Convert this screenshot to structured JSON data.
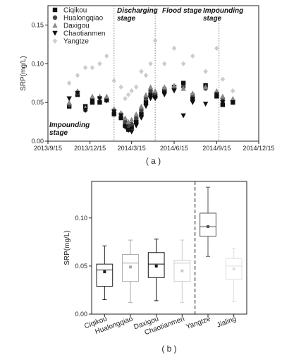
{
  "chart_data": [
    {
      "type": "scatter",
      "caption": "( a )",
      "ylabel": "SRP(mg/L)",
      "x": [
        "2013/10/31",
        "2013/11/18",
        "2013/12/5",
        "2013/12/20",
        "2014/1/5",
        "2014/1/20",
        "2014/2/5",
        "2014/2/20",
        "2014/3/1",
        "2014/3/8",
        "2014/3/15",
        "2014/3/25",
        "2014/4/5",
        "2014/4/15",
        "2014/4/25",
        "2014/5/5",
        "2014/5/25",
        "2014/6/15",
        "2014/7/5",
        "2014/7/25",
        "2014/8/22",
        "2014/9/15",
        "2014/9/28",
        "2014/10/20"
      ],
      "series": [
        {
          "name": "Ciqikou",
          "color": "#111111",
          "marker": "square",
          "values": [
            0.045,
            0.06,
            0.045,
            0.05,
            0.05,
            0.053,
            0.035,
            0.03,
            0.02,
            0.015,
            0.018,
            0.025,
            0.035,
            0.05,
            0.06,
            0.058,
            0.065,
            0.07,
            0.075,
            0.055,
            0.072,
            0.058,
            0.047,
            0.05
          ]
        },
        {
          "name": "Hualongqiao",
          "color": "#444444",
          "marker": "circle",
          "values": [
            0.047,
            0.062,
            0.04,
            0.055,
            0.056,
            0.055,
            0.04,
            0.035,
            0.025,
            0.02,
            0.022,
            0.03,
            0.04,
            0.055,
            0.065,
            0.062,
            0.068,
            0.068,
            0.07,
            0.06,
            0.068,
            0.062,
            0.055,
            0.052
          ]
        },
        {
          "name": "Daxigou",
          "color": "#888888",
          "marker": "triangle-up",
          "values": [
            0.05,
            0.065,
            0.043,
            0.058,
            0.058,
            0.058,
            0.042,
            0.037,
            0.03,
            0.025,
            0.028,
            0.035,
            0.045,
            0.06,
            0.07,
            0.065,
            0.07,
            0.072,
            0.068,
            0.062,
            0.07,
            0.065,
            0.058,
            0.055
          ]
        },
        {
          "name": "Chaotianmen",
          "color": "#111111",
          "marker": "triangle-down",
          "values": [
            0.055,
            0.062,
            0.04,
            0.052,
            0.055,
            0.052,
            0.038,
            0.033,
            0.018,
            0.014,
            0.012,
            0.02,
            0.03,
            0.045,
            0.055,
            0.055,
            0.06,
            0.065,
            0.033,
            0.05,
            0.048,
            0.06,
            0.05,
            0.05
          ]
        },
        {
          "name": "Yangtze",
          "color": "#cccccc",
          "marker": "diamond",
          "values": [
            0.075,
            0.085,
            0.095,
            0.095,
            0.1,
            0.11,
            0.078,
            0.07,
            0.055,
            0.06,
            0.065,
            0.07,
            0.09,
            0.085,
            0.1,
            0.13,
            0.1,
            0.12,
            0.1,
            0.11,
            0.09,
            0.12,
            0.08,
            0.065
          ]
        }
      ],
      "xlim": [
        "2013/9/15",
        "2014/12/15"
      ],
      "xticks": [
        "2013/9/15",
        "2013/12/15",
        "2014/3/15",
        "2014/6/15",
        "2014/9/15",
        "2014/12/15"
      ],
      "ylim": [
        0,
        0.175
      ],
      "yticks": [
        {
          "value": 0,
          "label": "0.00"
        },
        {
          "value": 0.05,
          "label": "0.05"
        },
        {
          "value": 0.1,
          "label": "0.10"
        },
        {
          "value": 0.15,
          "label": "0.15"
        }
      ],
      "stage_lines": [
        "2014/2/5",
        "2014/5/5",
        "2014/9/20"
      ],
      "annotations": [
        "Impounding stage",
        "Discharging stage",
        "Flood stage",
        "Impounding stage"
      ],
      "legend": "top-left"
    },
    {
      "type": "box",
      "caption": "( b )",
      "ylabel": "SRP(mg/L)",
      "categories": [
        "Ciqikou",
        "Hualongqiao",
        "Daxigou",
        "Chaotianmen",
        "Yangtze",
        "Jialing"
      ],
      "boxes": [
        {
          "min": 0.015,
          "q1": 0.029,
          "median": 0.046,
          "q3": 0.052,
          "max": 0.071,
          "mean": 0.044,
          "color": "#222222"
        },
        {
          "min": 0.012,
          "q1": 0.034,
          "median": 0.053,
          "q3": 0.062,
          "max": 0.077,
          "mean": 0.049,
          "color": "#aaaaaa"
        },
        {
          "min": 0.014,
          "q1": 0.038,
          "median": 0.052,
          "q3": 0.064,
          "max": 0.078,
          "mean": 0.05,
          "color": "#111111"
        },
        {
          "min": 0.012,
          "q1": 0.034,
          "median": 0.053,
          "q3": 0.056,
          "max": 0.077,
          "mean": 0.045,
          "color": "#cccccc"
        },
        {
          "min": 0.06,
          "q1": 0.081,
          "median": 0.091,
          "q3": 0.105,
          "max": 0.132,
          "mean": 0.091,
          "color": "#555555"
        },
        {
          "min": 0.013,
          "q1": 0.036,
          "median": 0.05,
          "q3": 0.058,
          "max": 0.068,
          "mean": 0.047,
          "color": "#dddddd"
        }
      ],
      "ylim": [
        0,
        0.138
      ],
      "yticks": [
        {
          "value": 0,
          "label": "0.00"
        },
        {
          "value": 0.05,
          "label": "0.05"
        },
        {
          "value": 0.1,
          "label": "0.10"
        }
      ]
    }
  ]
}
